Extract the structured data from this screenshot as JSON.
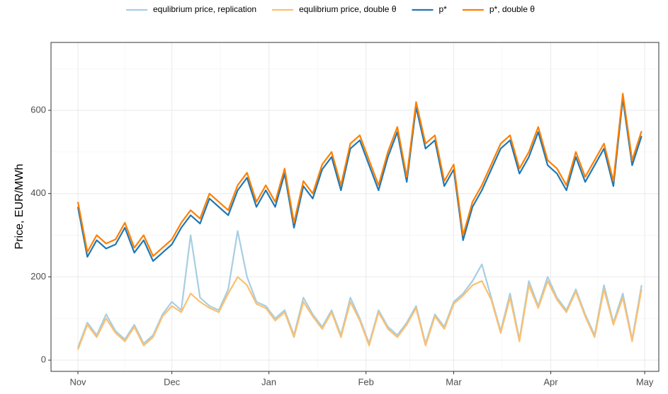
{
  "chart_data": {
    "type": "line",
    "ylabel": "Price, EUR/MWh",
    "x": [
      0,
      3,
      6,
      9,
      12,
      15,
      18,
      21,
      24,
      27,
      30,
      33,
      36,
      39,
      42,
      45,
      48,
      51,
      54,
      57,
      60,
      63,
      66,
      69,
      72,
      75,
      78,
      81,
      84,
      87,
      90,
      93,
      96,
      99,
      102,
      105,
      108,
      111,
      114,
      117,
      120,
      123,
      126,
      129,
      132,
      135,
      138,
      141,
      144,
      147,
      150,
      153,
      156,
      159,
      162,
      165,
      168,
      171,
      174,
      177,
      180
    ],
    "xlim": [
      -8.6,
      185.5
    ],
    "xticks": [
      {
        "value": 0,
        "label": "Nov"
      },
      {
        "value": 30,
        "label": "Dec"
      },
      {
        "value": 61,
        "label": "Jan"
      },
      {
        "value": 92,
        "label": "Feb"
      },
      {
        "value": 120,
        "label": "Mar"
      },
      {
        "value": 151,
        "label": "Apr"
      },
      {
        "value": 181,
        "label": "May"
      }
    ],
    "minor_xticks": [
      15,
      45.5,
      76.5,
      106,
      135.5,
      166
    ],
    "ylim": [
      -27,
      763
    ],
    "yticks": [
      0,
      200,
      400,
      600
    ],
    "minor_yticks": [
      100,
      300,
      500,
      700
    ],
    "grid": true,
    "legend": "top",
    "series": [
      {
        "name": "equlibrium price, replication",
        "color": "#a6cee3",
        "values": [
          30,
          90,
          60,
          110,
          70,
          50,
          85,
          40,
          60,
          110,
          140,
          120,
          300,
          150,
          130,
          120,
          170,
          310,
          200,
          140,
          130,
          100,
          120,
          60,
          150,
          110,
          80,
          120,
          60,
          150,
          100,
          40,
          120,
          80,
          60,
          90,
          130,
          40,
          110,
          80,
          140,
          160,
          190,
          230,
          150,
          70,
          160,
          50,
          190,
          130,
          200,
          150,
          120,
          170,
          110,
          60,
          180,
          90,
          160,
          50,
          180
        ]
      },
      {
        "name": "equlibrium price, double θ",
        "color": "#fdbf6f",
        "values": [
          25,
          85,
          55,
          100,
          65,
          45,
          80,
          35,
          55,
          105,
          130,
          115,
          160,
          140,
          125,
          115,
          160,
          200,
          180,
          135,
          125,
          95,
          115,
          55,
          140,
          105,
          75,
          115,
          55,
          140,
          95,
          35,
          115,
          75,
          55,
          85,
          125,
          35,
          105,
          75,
          135,
          155,
          180,
          190,
          145,
          65,
          150,
          45,
          180,
          125,
          190,
          145,
          115,
          165,
          105,
          55,
          170,
          85,
          150,
          45,
          170
        ]
      },
      {
        "name": "p*",
        "color": "#1f78b4",
        "values": [
          368,
          248,
          288,
          268,
          278,
          318,
          258,
          288,
          238,
          258,
          278,
          318,
          348,
          328,
          388,
          368,
          348,
          408,
          438,
          368,
          408,
          368,
          448,
          318,
          418,
          388,
          458,
          488,
          408,
          508,
          528,
          468,
          408,
          488,
          548,
          428,
          608,
          508,
          528,
          418,
          458,
          288,
          368,
          408,
          458,
          508,
          528,
          448,
          488,
          548,
          468,
          448,
          408,
          488,
          428,
          468,
          508,
          418,
          628,
          468,
          538
        ]
      },
      {
        "name": "p*, double θ",
        "color": "#ff7f00",
        "values": [
          380,
          260,
          300,
          280,
          290,
          330,
          270,
          300,
          250,
          270,
          290,
          330,
          360,
          340,
          400,
          380,
          360,
          420,
          450,
          380,
          420,
          380,
          460,
          330,
          430,
          400,
          470,
          500,
          420,
          520,
          540,
          480,
          420,
          500,
          560,
          440,
          620,
          520,
          540,
          430,
          470,
          300,
          380,
          420,
          470,
          520,
          540,
          460,
          500,
          560,
          480,
          460,
          420,
          500,
          440,
          480,
          520,
          430,
          640,
          480,
          550
        ]
      }
    ]
  }
}
